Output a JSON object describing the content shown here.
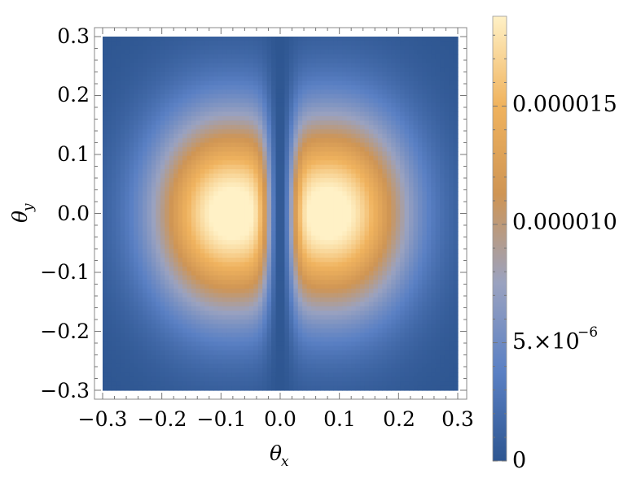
{
  "chart_data": {
    "type": "heatmap",
    "title": "",
    "xlabel": "θ",
    "xlabel_sub": "x",
    "ylabel": "θ",
    "ylabel_sub": "y",
    "xlim": [
      -0.3,
      0.3
    ],
    "ylim": [
      -0.3,
      0.3
    ],
    "x_ticks": [
      -0.3,
      -0.2,
      -0.1,
      0.0,
      0.1,
      0.2,
      0.3
    ],
    "x_tick_labels": [
      "−0.3",
      "−0.2",
      "−0.1",
      "0.0",
      "0.1",
      "0.2",
      "0.3"
    ],
    "y_ticks": [
      0.3,
      0.2,
      0.1,
      0.0,
      -0.1,
      -0.2,
      -0.3
    ],
    "y_tick_labels": [
      "0.3",
      "0.2",
      "0.1",
      "0.0",
      "−0.1",
      "−0.2",
      "−0.3"
    ],
    "peaks": [
      {
        "x": -0.1,
        "y": 0.0,
        "value": 1.85e-05
      },
      {
        "x": 0.1,
        "y": 0.0,
        "value": 1.85e-05
      }
    ],
    "colorbar": {
      "range": [
        0,
        1.88e-05
      ],
      "ticks": [
        0,
        5e-06,
        1e-05,
        1.5e-05
      ],
      "tick_labels": [
        "0",
        "5.×10",
        "0.000010",
        "0.000015"
      ],
      "exponent_label": "−6",
      "colors": [
        "#2e5691",
        "#5a80c4",
        "#9aa2c0",
        "#cf9554",
        "#f0b35e",
        "#fff1c6"
      ]
    },
    "grid": false,
    "legend": "colorbar-right"
  }
}
